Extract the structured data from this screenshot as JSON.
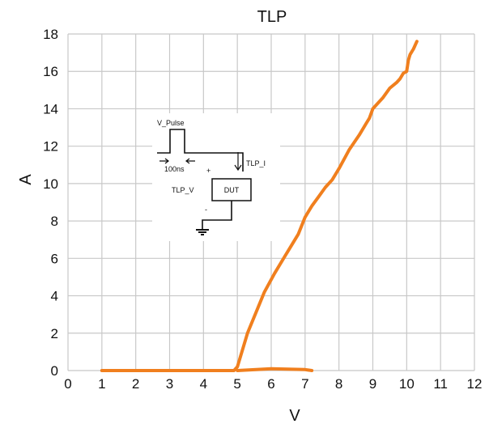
{
  "chart_data": {
    "type": "line",
    "title": "TLP",
    "xlabel": "V",
    "ylabel": "A",
    "xlim": [
      0,
      12
    ],
    "ylim": [
      0,
      18
    ],
    "xticks": [
      "0",
      "1",
      "2",
      "3",
      "4",
      "5",
      "6",
      "7",
      "8",
      "9",
      "10",
      "11",
      "12"
    ],
    "yticks": [
      "0",
      "2",
      "4",
      "6",
      "8",
      "10",
      "12",
      "14",
      "16",
      "18"
    ],
    "grid": true,
    "series": [
      {
        "color": "#f07f1e",
        "x": [
          1.0,
          4.9,
          5.0,
          5.3,
          5.8,
          6.1,
          6.4,
          6.6,
          6.8,
          7.0,
          7.2,
          7.4,
          7.6,
          7.8,
          8.0,
          8.3,
          8.6,
          8.8,
          8.9,
          9.0,
          9.3,
          9.5,
          9.7,
          9.8,
          9.9,
          10.0,
          10.05,
          10.1,
          10.2,
          10.3
        ],
        "y": [
          0.0,
          0.0,
          0.2,
          2.0,
          4.2,
          5.2,
          6.1,
          6.7,
          7.3,
          8.2,
          8.8,
          9.3,
          9.8,
          10.2,
          10.8,
          11.8,
          12.6,
          13.2,
          13.5,
          14.0,
          14.6,
          15.1,
          15.4,
          15.6,
          15.9,
          16.0,
          16.6,
          16.9,
          17.2,
          17.6
        ]
      },
      {
        "color": "#f07f1e",
        "x": [
          5.0,
          6.0,
          7.0,
          7.2
        ],
        "y": [
          0.0,
          0.1,
          0.05,
          0.0
        ]
      }
    ],
    "inset_labels": {
      "pulse": "V_Pulse",
      "width": "100ns",
      "current": "TLP_I",
      "voltage": "TLP_V",
      "device": "DUT",
      "plus": "+",
      "minus": "-"
    }
  }
}
